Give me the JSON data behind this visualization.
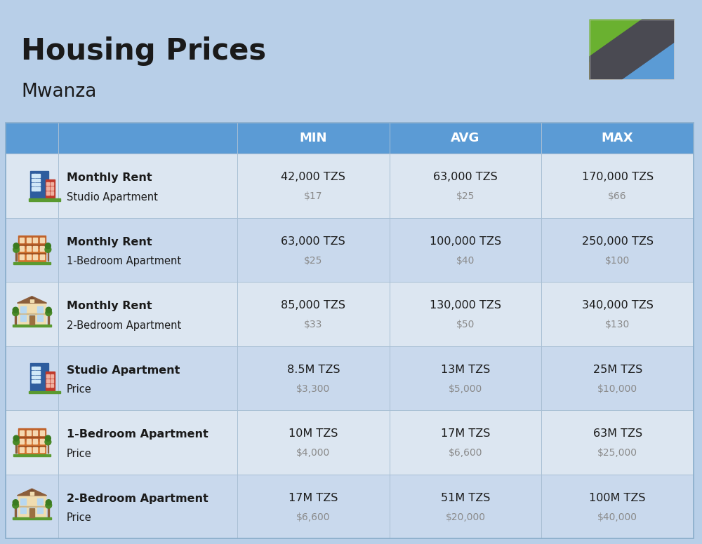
{
  "title": "Housing Prices",
  "subtitle": "Mwanza",
  "background_color": "#b8cfe8",
  "header_bg_color": "#5b9bd5",
  "header_text_color": "#ffffff",
  "row_bg_colors": [
    "#dce6f1",
    "#c9d9ed"
  ],
  "col_headers": [
    "MIN",
    "AVG",
    "MAX"
  ],
  "rows": [
    {
      "bold_label": "Monthly Rent",
      "sub_label": "Studio Apartment",
      "icon_type": "blue_building",
      "min_tzs": "42,000 TZS",
      "min_usd": "$17",
      "avg_tzs": "63,000 TZS",
      "avg_usd": "$25",
      "max_tzs": "170,000 TZS",
      "max_usd": "$66"
    },
    {
      "bold_label": "Monthly Rent",
      "sub_label": "1-Bedroom Apartment",
      "icon_type": "orange_building",
      "min_tzs": "63,000 TZS",
      "min_usd": "$25",
      "avg_tzs": "100,000 TZS",
      "avg_usd": "$40",
      "max_tzs": "250,000 TZS",
      "max_usd": "$100"
    },
    {
      "bold_label": "Monthly Rent",
      "sub_label": "2-Bedroom Apartment",
      "icon_type": "beige_building",
      "min_tzs": "85,000 TZS",
      "min_usd": "$33",
      "avg_tzs": "130,000 TZS",
      "avg_usd": "$50",
      "max_tzs": "340,000 TZS",
      "max_usd": "$130"
    },
    {
      "bold_label": "Studio Apartment",
      "sub_label": "Price",
      "icon_type": "blue_building",
      "min_tzs": "8.5M TZS",
      "min_usd": "$3,300",
      "avg_tzs": "13M TZS",
      "avg_usd": "$5,000",
      "max_tzs": "25M TZS",
      "max_usd": "$10,000"
    },
    {
      "bold_label": "1-Bedroom Apartment",
      "sub_label": "Price",
      "icon_type": "orange_building",
      "min_tzs": "10M TZS",
      "min_usd": "$4,000",
      "avg_tzs": "17M TZS",
      "avg_usd": "$6,600",
      "max_tzs": "63M TZS",
      "max_usd": "$25,000"
    },
    {
      "bold_label": "2-Bedroom Apartment",
      "sub_label": "Price",
      "icon_type": "beige_building",
      "min_tzs": "17M TZS",
      "min_usd": "$6,600",
      "avg_tzs": "51M TZS",
      "avg_usd": "$20,000",
      "max_tzs": "100M TZS",
      "max_usd": "$40,000"
    }
  ],
  "usd_color": "#8a8a8a",
  "tzs_color": "#1a1a1a",
  "label_bold_color": "#1a1a1a",
  "label_sub_color": "#1a1a1a",
  "flag_green": "#6ab130",
  "flag_blue": "#5b9bd5",
  "flag_black": "#4a4a52",
  "flag_yellow": "#e8d44d"
}
